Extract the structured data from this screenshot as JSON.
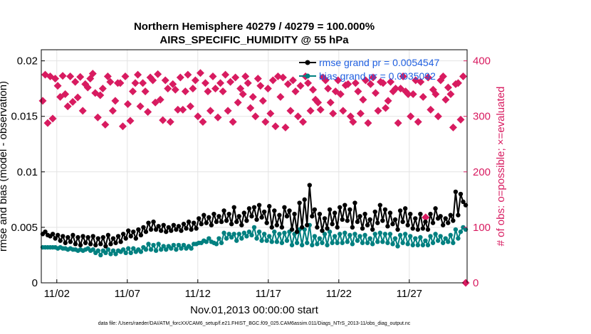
{
  "chart_data": {
    "type": "line",
    "title": "Northern Hemisphere 40279 / 40279 = 100.000%",
    "subtitle": "AIRS_SPECIFIC_HUMIDITY @ 55 hPa",
    "xlabel": "Nov.01,2013 00:00:00 start",
    "ylabel": "rmse and bias (model - observation)",
    "ylabel_right": "# of obs: o=possible; ×=evaluated",
    "footer": "data file: /Users/raeder/DAI/ATM_forcXX/CAM6_setup/f.e21.FHIST_BGC.f09_025.CAM6assim.011/Diags_NTrS_2013-11/obs_diag_output.nc",
    "x_range": [
      0.4,
      30.6
    ],
    "ylim": [
      0,
      0.021
    ],
    "ylim_right": [
      0,
      420
    ],
    "y_ticks": [
      0,
      0.005,
      0.01,
      0.015,
      0.02
    ],
    "y_tick_labels": [
      "0",
      "0.005",
      "0.01",
      "0.015",
      "0.02"
    ],
    "y_ticks_right": [
      0,
      100,
      200,
      300,
      400
    ],
    "y_tick_labels_right": [
      "0",
      "100",
      "200",
      "300",
      "400"
    ],
    "x_ticks": [
      1.5,
      6.5,
      11.5,
      16.5,
      21.5,
      26.5
    ],
    "x_tick_labels": [
      "11/02",
      "11/07",
      "11/12",
      "11/17",
      "11/22",
      "11/27"
    ],
    "grid": true,
    "legend_position": "top-right",
    "colors": {
      "rmse": "#000000",
      "bias": "#008080",
      "obs": "#d81b60"
    },
    "series": [
      {
        "name": "rmse grand pr = 0.0054547",
        "axis": "left",
        "values": [
          0.0044,
          0.0046,
          0.0043,
          0.0042,
          0.0044,
          0.004,
          0.0043,
          0.0038,
          0.0042,
          0.0036,
          0.0041,
          0.0037,
          0.0043,
          0.0035,
          0.0041,
          0.0034,
          0.0042,
          0.0036,
          0.0041,
          0.0035,
          0.0042,
          0.0034,
          0.004,
          0.0035,
          0.0041,
          0.0033,
          0.0043,
          0.0035,
          0.004,
          0.0036,
          0.0042,
          0.0037,
          0.0044,
          0.004,
          0.0047,
          0.0042,
          0.0046,
          0.004,
          0.0048,
          0.0043,
          0.005,
          0.0046,
          0.0054,
          0.0048,
          0.0055,
          0.0048,
          0.0051,
          0.0047,
          0.0052,
          0.0046,
          0.005,
          0.0047,
          0.0052,
          0.0048,
          0.0051,
          0.0047,
          0.0053,
          0.0049,
          0.0055,
          0.0048,
          0.0054,
          0.0049,
          0.0058,
          0.0053,
          0.0061,
          0.0054,
          0.0059,
          0.0052,
          0.0062,
          0.0055,
          0.006,
          0.0055,
          0.0065,
          0.0056,
          0.0062,
          0.0053,
          0.0068,
          0.0055,
          0.006,
          0.0052,
          0.0063,
          0.0056,
          0.0067,
          0.006,
          0.0068,
          0.0057,
          0.007,
          0.0059,
          0.0064,
          0.0054,
          0.0069,
          0.005,
          0.0065,
          0.0052,
          0.0061,
          0.005,
          0.0068,
          0.006,
          0.0065,
          0.0048,
          0.0062,
          0.0046,
          0.0072,
          0.005,
          0.0075,
          0.0052,
          0.0088,
          0.006,
          0.0066,
          0.005,
          0.0062,
          0.0047,
          0.0058,
          0.0049,
          0.0066,
          0.0053,
          0.0063,
          0.005,
          0.0068,
          0.0057,
          0.007,
          0.0056,
          0.0066,
          0.005,
          0.0072,
          0.0055,
          0.006,
          0.0049,
          0.0062,
          0.0052,
          0.0057,
          0.0048,
          0.0064,
          0.0054,
          0.007,
          0.0056,
          0.0066,
          0.0051,
          0.0063,
          0.0053,
          0.0057,
          0.0048,
          0.0065,
          0.0055,
          0.0067,
          0.0052,
          0.0062,
          0.0049,
          0.0058,
          0.0048,
          0.0062,
          0.0049,
          0.0055,
          0.0048,
          0.0062,
          0.0054,
          0.0067,
          0.0058,
          0.006,
          0.0052,
          0.0058,
          0.0054,
          0.0061,
          0.0056,
          0.0082,
          0.0061,
          0.008,
          0.0073,
          0.007
        ]
      },
      {
        "name": "bias grand pr = 0.0035092",
        "axis": "left",
        "values": [
          0.0032,
          0.0032,
          0.0032,
          0.0032,
          0.0032,
          0.0032,
          0.0031,
          0.0032,
          0.0031,
          0.0031,
          0.003,
          0.0031,
          0.003,
          0.003,
          0.0029,
          0.003,
          0.0029,
          0.003,
          0.0031,
          0.0029,
          0.003,
          0.0027,
          0.0029,
          0.0025,
          0.0029,
          0.0027,
          0.003,
          0.0026,
          0.0029,
          0.0026,
          0.0029,
          0.0028,
          0.003,
          0.0027,
          0.0031,
          0.0027,
          0.0031,
          0.0028,
          0.003,
          0.0028,
          0.0032,
          0.003,
          0.0035,
          0.003,
          0.0034,
          0.0029,
          0.0035,
          0.003,
          0.0033,
          0.003,
          0.0033,
          0.0031,
          0.0034,
          0.003,
          0.0034,
          0.0031,
          0.0034,
          0.0031,
          0.0033,
          0.0031,
          0.0035,
          0.0035,
          0.0036,
          0.0036,
          0.0038,
          0.0037,
          0.004,
          0.0037,
          0.0036,
          0.0035,
          0.004,
          0.0036,
          0.0045,
          0.004,
          0.0044,
          0.0041,
          0.0044,
          0.0038,
          0.0044,
          0.004,
          0.0045,
          0.0042,
          0.0046,
          0.0043,
          0.005,
          0.004,
          0.0046,
          0.0038,
          0.0044,
          0.0038,
          0.0042,
          0.0037,
          0.0046,
          0.0037,
          0.0044,
          0.0036,
          0.0045,
          0.0038,
          0.0046,
          0.0034,
          0.0044,
          0.0036,
          0.0048,
          0.0034,
          0.0048,
          0.0036,
          0.0052,
          0.0034,
          0.0042,
          0.0035,
          0.004,
          0.0036,
          0.0044,
          0.0034,
          0.0046,
          0.0036,
          0.0042,
          0.0036,
          0.0044,
          0.0036,
          0.0045,
          0.0037,
          0.0043,
          0.0035,
          0.0044,
          0.0038,
          0.0042,
          0.0036,
          0.0043,
          0.0036,
          0.004,
          0.0035,
          0.0044,
          0.0037,
          0.0045,
          0.0037,
          0.0044,
          0.0036,
          0.0044,
          0.0035,
          0.004,
          0.0033,
          0.0043,
          0.0036,
          0.0044,
          0.0035,
          0.0042,
          0.0034,
          0.004,
          0.0034,
          0.0041,
          0.0034,
          0.0038,
          0.0034,
          0.0042,
          0.0036,
          0.0044,
          0.0038,
          0.0042,
          0.0036,
          0.004,
          0.0037,
          0.0043,
          0.0036,
          0.0048,
          0.004,
          0.0046,
          0.005,
          0.0048
        ]
      },
      {
        "name": "# of obs evaluated",
        "axis": "right",
        "values": [
          328,
          375,
          288,
          372,
          296,
          368,
          355,
          335,
          373,
          340,
          318,
          372,
          326,
          362,
          334,
          371,
          310,
          358,
          352,
          368,
          377,
          342,
          298,
          338,
          350,
          285,
          372,
          362,
          310,
          328,
          360,
          360,
          282,
          372,
          322,
          292,
          345,
          360,
          375,
          318,
          360,
          345,
          308,
          370,
          365,
          325,
          376,
          330,
          293,
          365,
          350,
          290,
          358,
          348,
          312,
          370,
          312,
          345,
          375,
          318,
          350,
          365,
          300,
          378,
          290,
          360,
          345,
          310,
          372,
          350,
          298,
          360,
          345,
          375,
          310,
          362,
          290,
          370,
          325,
          350,
          340,
          372,
          360,
          315,
          335,
          300,
          368,
          355,
          328,
          290,
          350,
          305,
          365,
          282,
          372,
          335,
          370,
          280,
          358,
          310,
          365,
          345,
          300,
          355,
          290,
          372,
          360,
          310,
          348,
          330,
          325,
          312,
          370,
          365,
          350,
          325,
          305,
          345,
          365,
          340,
          310,
          356,
          358,
          300,
          290,
          360,
          345,
          305,
          330,
          365,
          288,
          358,
          370,
          342,
          310,
          362,
          360,
          315,
          328,
          362,
          345,
          350,
          288,
          350,
          372,
          345,
          340,
          300,
          340,
          365,
          290,
          362,
          335,
          118,
          370,
          312,
          348,
          340,
          300,
          365,
          372,
          330,
          352,
          340,
          280,
          358,
          360,
          294,
          372,
          0
        ]
      }
    ]
  }
}
